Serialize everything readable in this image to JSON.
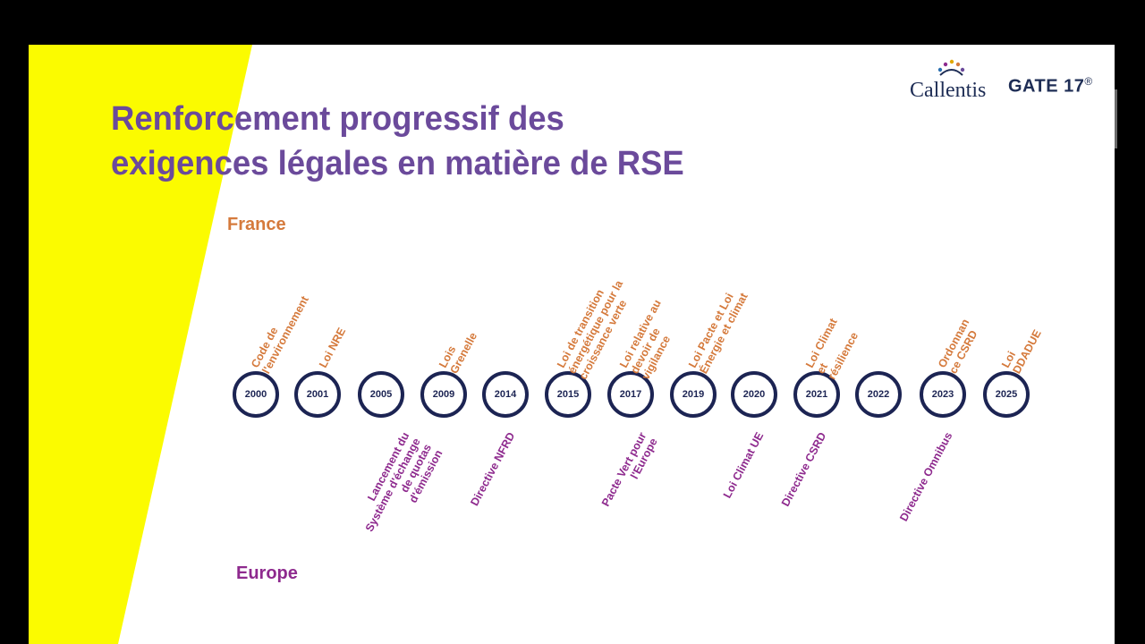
{
  "title": {
    "line1": "Renforcement progressif des",
    "line2": "exigences légales en matière de RSE"
  },
  "regions": {
    "france": "France",
    "europe": "Europe"
  },
  "logos": {
    "callentis": "Callentis",
    "gate": "GATE 17",
    "gate_mark": "®"
  },
  "colors": {
    "title": "#6b4a9b",
    "france": "#d57a3c",
    "europe": "#8e2a8e",
    "circle": "#1c2453",
    "yellow": "#fbfb00"
  },
  "years": [
    "2000",
    "2001",
    "2005",
    "2009",
    "2014",
    "2015",
    "2017",
    "2019",
    "2020",
    "2021",
    "2022",
    "2023",
    "2025"
  ],
  "france_events": [
    [
      "Code de",
      "l'environnement"
    ],
    [
      "Loi NRE"
    ],
    [],
    [
      "Lois",
      "Grenelle"
    ],
    [],
    [
      "Loi de transition",
      "énergétique pour la",
      "croissance verte"
    ],
    [
      "Loi relative au",
      "devoir de",
      "vigilance"
    ],
    [
      "Loi Pacte et Loi",
      "Énergie et climat"
    ],
    [],
    [
      "Loi Climat",
      "et",
      "résilience"
    ],
    [],
    [
      "Ordonnan",
      "ce CSRD"
    ],
    [
      "Loi",
      "DDADUE"
    ]
  ],
  "europe_events": [
    [],
    [],
    [
      "Lancement du",
      "Système d'échange",
      "de quotas",
      "d'émission"
    ],
    [],
    [
      "Directive NFRD"
    ],
    [],
    [
      "Pacte Vert pour",
      "l'Europe"
    ],
    [],
    [
      "Loi Climat UE"
    ],
    [
      "Directive CSRD"
    ],
    [],
    [
      "Directive Omnibus"
    ],
    []
  ]
}
